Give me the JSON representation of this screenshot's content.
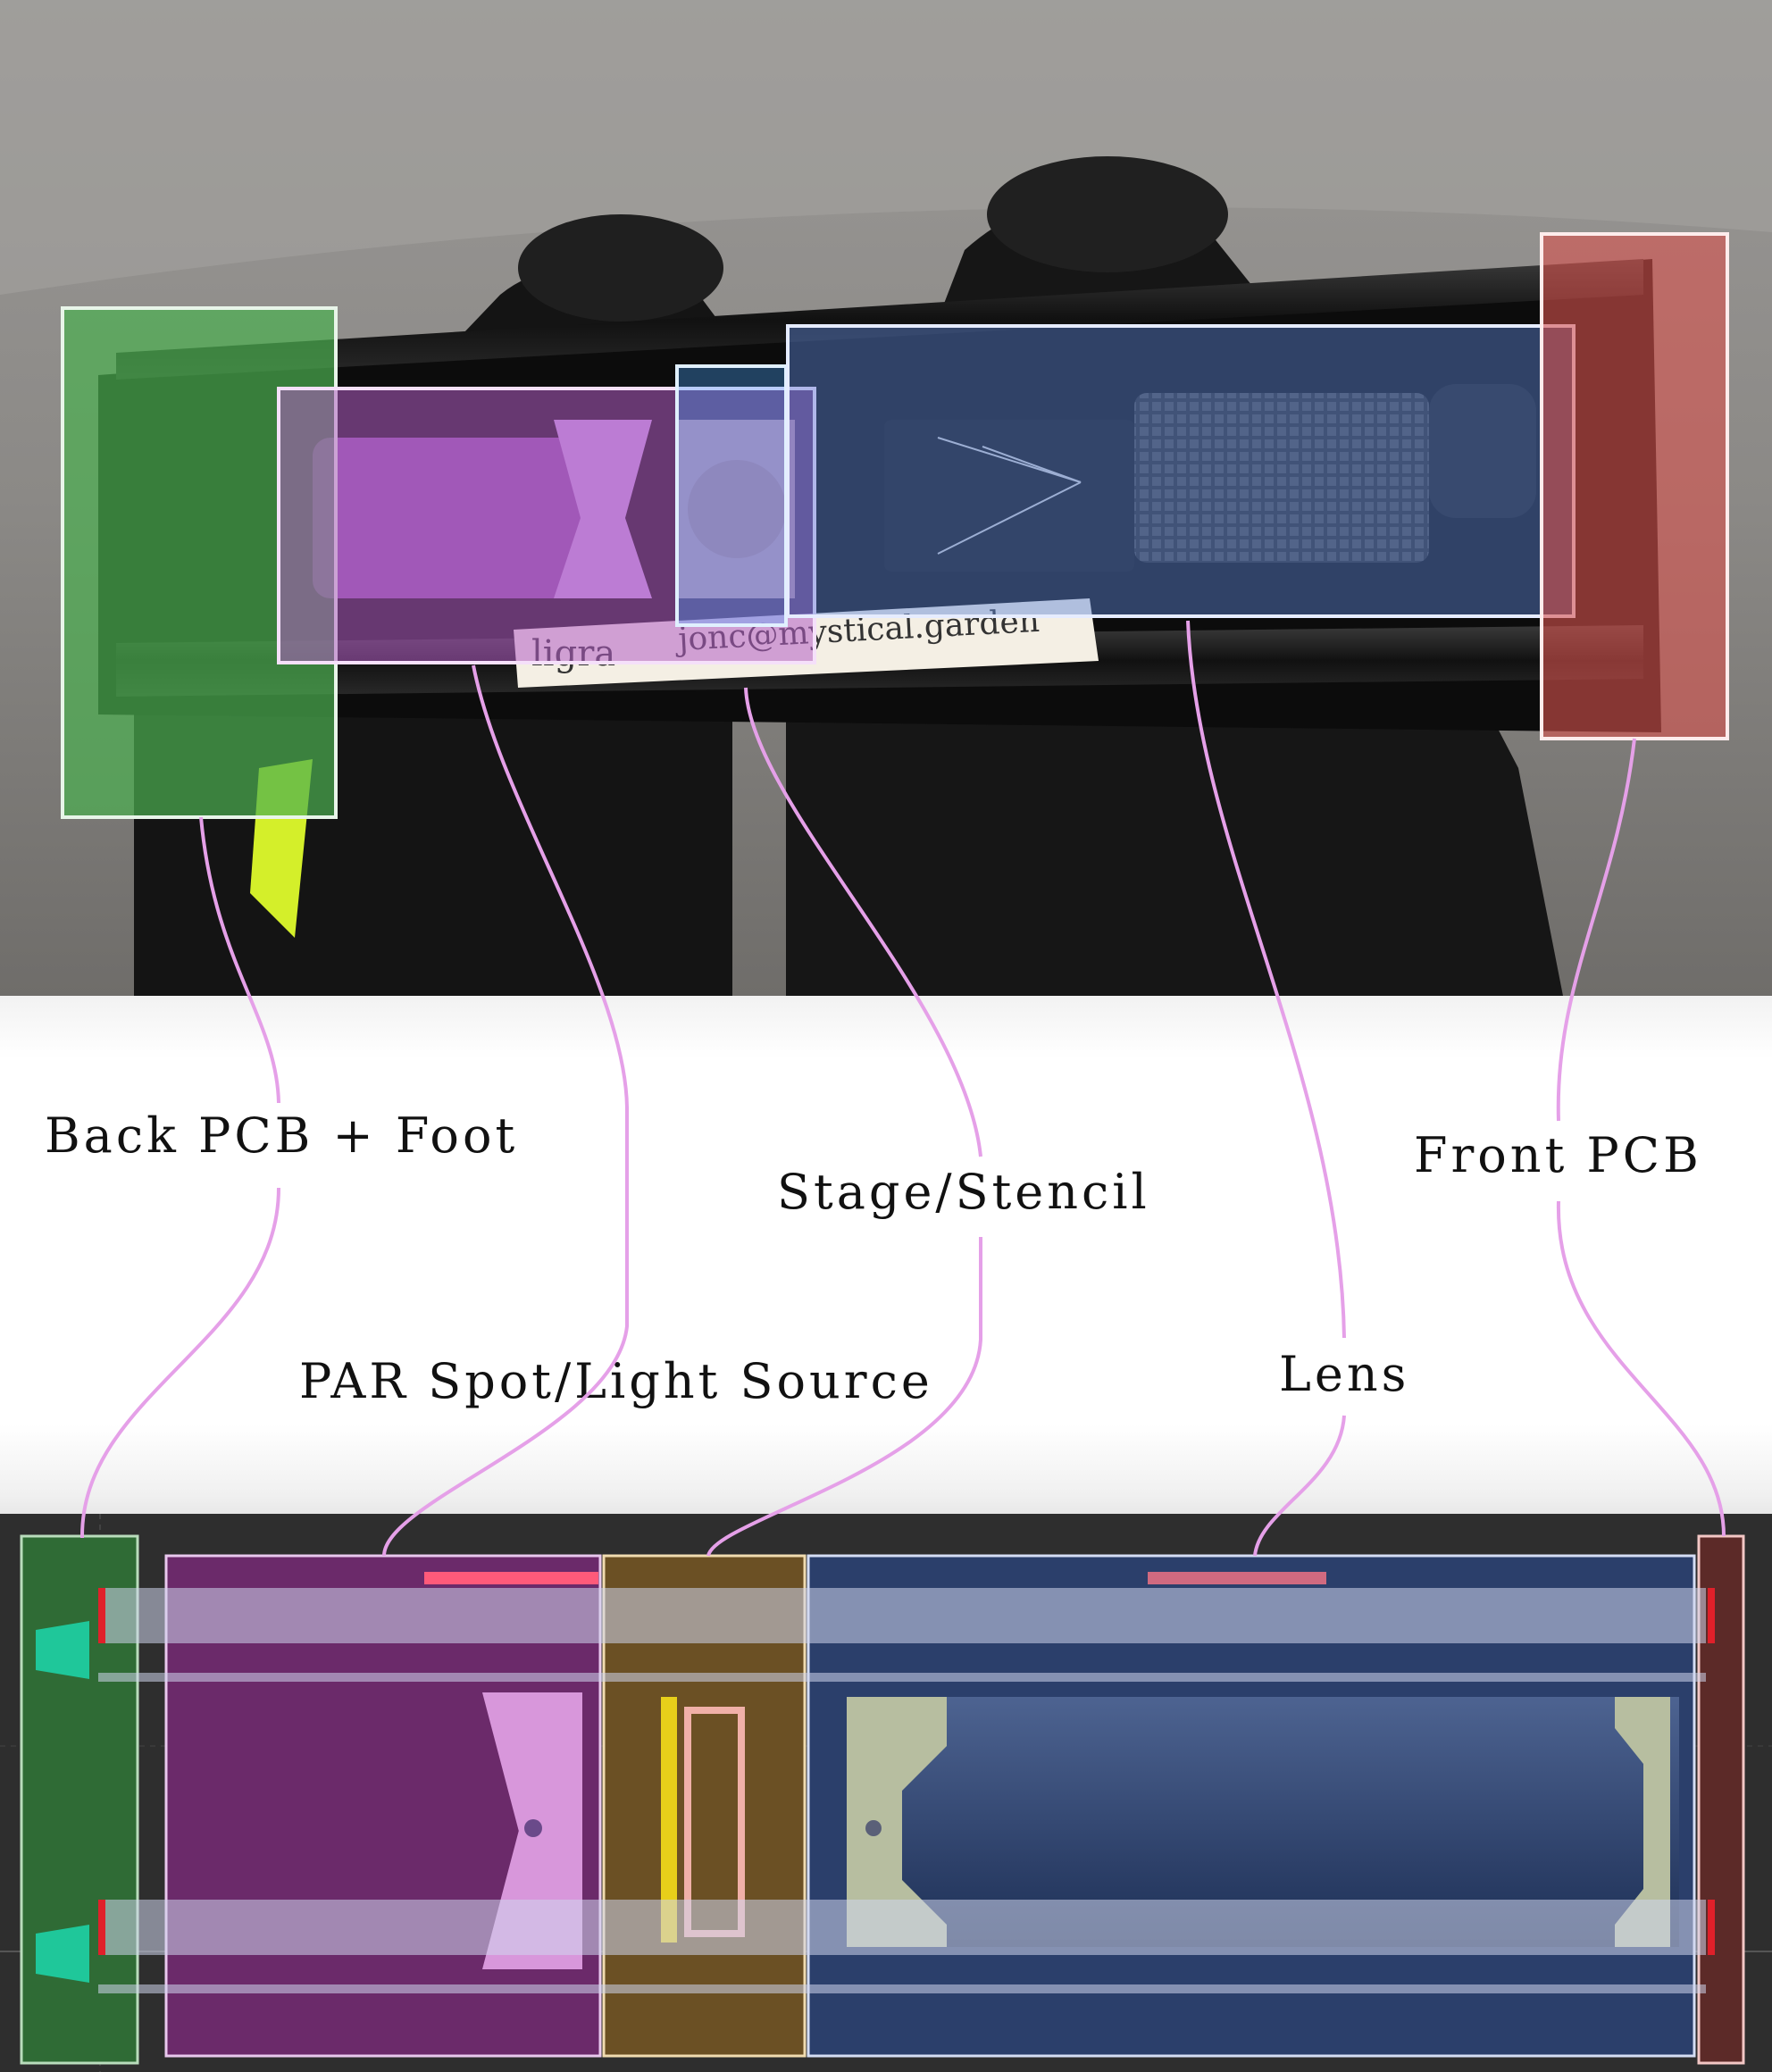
{
  "callouts": {
    "back_pcb": "Back PCB + Foot",
    "par_spot": "PAR Spot/Light Source",
    "stage": "Stage/Stencil",
    "lens": "Lens",
    "front_pcb": "Front PCB"
  },
  "photo_tag": {
    "brand": "ligra",
    "email": "jonc@mystical.garden"
  },
  "colors": {
    "back_pcb": "#4caf50",
    "par_spot": "#b25cc4",
    "stage": "#c9a05a",
    "lens": "#5d86d6",
    "front_pcb": "#d9534f",
    "connector": "#e5a0e8"
  }
}
